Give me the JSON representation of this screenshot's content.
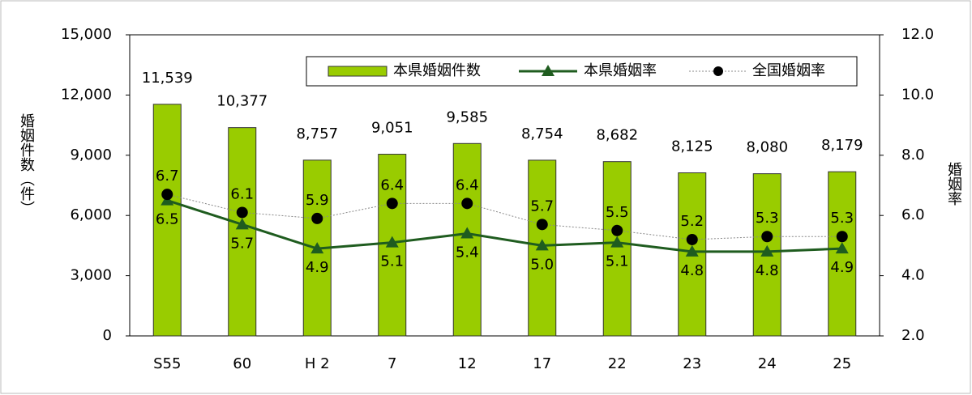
{
  "chart_data": {
    "type": "bar",
    "y_label": "婚姻件数（件）",
    "y2_label": "婚姻率",
    "categories": [
      "S55",
      "60",
      "H 2",
      "7",
      "12",
      "17",
      "22",
      "23",
      "24",
      "25"
    ],
    "ylim": [
      0,
      15000
    ],
    "yticks": [
      {
        "value": 0,
        "label": "0"
      },
      {
        "value": 3000,
        "label": "3,000"
      },
      {
        "value": 6000,
        "label": "6,000"
      },
      {
        "value": 9000,
        "label": "9,000"
      },
      {
        "value": 12000,
        "label": "12,000"
      },
      {
        "value": 15000,
        "label": "15,000"
      }
    ],
    "y2lim": [
      2,
      12
    ],
    "y2ticks": [
      {
        "value": 2,
        "label": "2.0"
      },
      {
        "value": 4,
        "label": "4.0"
      },
      {
        "value": 6,
        "label": "6.0"
      },
      {
        "value": 8,
        "label": "8.0"
      },
      {
        "value": 10,
        "label": "10.0"
      },
      {
        "value": 12,
        "label": "12.0"
      }
    ],
    "series": [
      {
        "name": "本県婚姻件数",
        "type": "bar",
        "color": "#99cc00",
        "values": [
          11539,
          10377,
          8757,
          9051,
          9585,
          8754,
          8682,
          8125,
          8080,
          8179
        ],
        "value_labels": [
          "11,539",
          "10,377",
          "8,757",
          "9,051",
          "9,585",
          "8,754",
          "8,682",
          "8,125",
          "8,080",
          "8,179"
        ]
      },
      {
        "name": "本県婚姻率",
        "type": "line",
        "axis": "y2",
        "color": "#1f5c1f",
        "values": [
          6.5,
          5.7,
          4.9,
          5.1,
          5.4,
          5.0,
          5.1,
          4.8,
          4.8,
          4.9
        ],
        "value_labels": [
          "6.5",
          "5.7",
          "4.9",
          "5.1",
          "5.4",
          "5.0",
          "5.1",
          "4.8",
          "4.8",
          "4.9"
        ]
      },
      {
        "name": "全国婚姻率",
        "type": "dotline",
        "axis": "y2",
        "color": "#000000",
        "values": [
          6.7,
          6.1,
          5.9,
          6.4,
          6.4,
          5.7,
          5.5,
          5.2,
          5.3,
          5.3
        ],
        "value_labels": [
          "6.7",
          "6.1",
          "5.9",
          "6.4",
          "6.4",
          "5.7",
          "5.5",
          "5.2",
          "5.3",
          "5.3"
        ]
      }
    ]
  }
}
